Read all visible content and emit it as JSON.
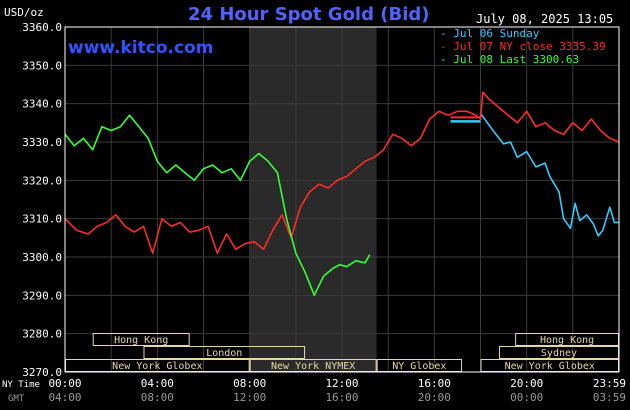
{
  "header": {
    "title": "24 Hour Spot Gold (Bid)",
    "unit": "USD/oz",
    "datetime": "July 08, 2025 13:05",
    "watermark": "www.kitco.com"
  },
  "legend": [
    {
      "label": "Jul 06 Sunday",
      "color": "#33ccff"
    },
    {
      "label": "Jul 07 NY close 3335.39",
      "color": "#ff2a2a"
    },
    {
      "label": "Jul 08 Last 3300.63",
      "color": "#33ff33"
    }
  ],
  "colors": {
    "background": "#000000",
    "grid": "#3a3a3a",
    "text": "#ffffff",
    "highlight": "#2a2a2a",
    "session_box": "#e6d7a8"
  },
  "axes": {
    "row1_label": "NY Time",
    "row2_label": "GMT",
    "x_ticks_ny": [
      "00:00",
      "04:00",
      "08:00",
      "12:00",
      "16:00",
      "20:00",
      "23:59"
    ],
    "x_ticks_gmt": [
      "04:00",
      "08:00",
      "12:00",
      "16:00",
      "20:00",
      "00:00",
      "03:59"
    ]
  },
  "sessions": [
    {
      "label": "Hong Kong",
      "start": 1.2,
      "end": 5.4,
      "row": 0
    },
    {
      "label": "London",
      "start": 3.4,
      "end": 10.4,
      "row": 1
    },
    {
      "label": "New York Globex",
      "start": 0.0,
      "end": 8.0,
      "row": 2
    },
    {
      "label": "New York NYMEX",
      "start": 8.0,
      "end": 13.5,
      "row": 2
    },
    {
      "label": "NY Globex",
      "start": 13.5,
      "end": 17.2,
      "row": 2
    },
    {
      "label": "Hong Kong",
      "start": 19.5,
      "end": 24.0,
      "row": 0
    },
    {
      "label": "Sydney",
      "start": 18.8,
      "end": 24.0,
      "row": 1
    },
    {
      "label": "New York Globex",
      "start": 18.0,
      "end": 24.0,
      "row": 2
    }
  ],
  "chart_data": {
    "type": "line",
    "title": "24 Hour Spot Gold (Bid)",
    "ylabel": "USD/oz",
    "xlabel": "NY Time",
    "xlim": [
      0,
      24
    ],
    "ylim": [
      3270,
      3360
    ],
    "y_ticks": [
      "3270.0",
      "3280.0",
      "3290.0",
      "3300.0",
      "3310.0",
      "3320.0",
      "3330.0",
      "3340.0",
      "3350.0",
      "3360.0"
    ],
    "highlight_range": [
      8.0,
      13.5
    ],
    "grid": true,
    "series": [
      {
        "name": "Jul 06 Sunday",
        "color": "#33ccff",
        "x": [
          18.0,
          18.6,
          19.0,
          19.3,
          19.6,
          20.0,
          20.4,
          20.8,
          21.0,
          21.4,
          21.6,
          21.9,
          22.1,
          22.3,
          22.6,
          22.9,
          23.1,
          23.3,
          23.6,
          23.8,
          23.99
        ],
        "y": [
          3337.5,
          3332.5,
          3329.5,
          3330.0,
          3326.0,
          3327.5,
          3323.5,
          3324.5,
          3321.0,
          3317.0,
          3310.0,
          3307.5,
          3314.0,
          3309.5,
          3311.0,
          3308.5,
          3305.5,
          3307.0,
          3313.0,
          3309.0,
          3309.0
        ]
      },
      {
        "name": "Jul 07 NY close 3335.39",
        "color": "#ff2a2a",
        "x": [
          0.0,
          0.5,
          1.0,
          1.4,
          1.8,
          2.2,
          2.6,
          3.0,
          3.4,
          3.8,
          4.2,
          4.6,
          5.0,
          5.4,
          5.8,
          6.2,
          6.6,
          7.0,
          7.4,
          7.8,
          8.2,
          8.6,
          9.0,
          9.4,
          9.8,
          10.2,
          10.6,
          11.0,
          11.4,
          11.8,
          12.2,
          12.6,
          13.0,
          13.4,
          13.8,
          14.2,
          14.6,
          15.0,
          15.4,
          15.8,
          16.2,
          16.6,
          17.0,
          17.4,
          17.8,
          18.0,
          18.1,
          18.4,
          18.8,
          19.2,
          19.6,
          20.0,
          20.4,
          20.8,
          21.2,
          21.6,
          22.0,
          22.4,
          22.8,
          23.2,
          23.6,
          23.99
        ],
        "y": [
          3310.0,
          3307.0,
          3306.0,
          3308.0,
          3309.0,
          3311.0,
          3308.0,
          3306.5,
          3308.0,
          3301.0,
          3310.0,
          3308.0,
          3309.0,
          3306.5,
          3307.0,
          3308.0,
          3301.0,
          3306.0,
          3302.0,
          3303.5,
          3304.0,
          3302.0,
          3307.0,
          3311.0,
          3305.0,
          3313.0,
          3317.0,
          3319.0,
          3318.0,
          3320.0,
          3321.0,
          3323.0,
          3325.0,
          3326.0,
          3328.0,
          3332.0,
          3331.0,
          3329.0,
          3331.0,
          3336.0,
          3338.0,
          3337.0,
          3338.0,
          3338.0,
          3337.0,
          3336.0,
          3343.0,
          3341.0,
          3339.0,
          3337.0,
          3335.0,
          3338.0,
          3334.0,
          3335.0,
          3333.0,
          3332.0,
          3335.0,
          3333.0,
          3336.0,
          3333.0,
          3331.0,
          3330.0
        ]
      },
      {
        "name": "Jul 08 Last 3300.63",
        "color": "#33ff33",
        "x": [
          0.0,
          0.4,
          0.8,
          1.2,
          1.6,
          2.0,
          2.4,
          2.8,
          3.2,
          3.6,
          4.0,
          4.4,
          4.8,
          5.2,
          5.6,
          6.0,
          6.4,
          6.8,
          7.2,
          7.6,
          8.0,
          8.4,
          8.8,
          9.2,
          9.6,
          10.0,
          10.4,
          10.8,
          11.2,
          11.6,
          11.9,
          12.2,
          12.6,
          13.0,
          13.2
        ],
        "y": [
          3332.0,
          3329.0,
          3331.0,
          3328.0,
          3334.0,
          3333.0,
          3334.0,
          3337.0,
          3334.0,
          3331.0,
          3325.0,
          3322.0,
          3324.0,
          3322.0,
          3320.0,
          3323.0,
          3324.0,
          3322.0,
          3323.0,
          3320.0,
          3325.0,
          3327.0,
          3325.0,
          3322.0,
          3310.0,
          3301.0,
          3296.0,
          3290.0,
          3295.0,
          3297.0,
          3298.0,
          3297.5,
          3299.0,
          3298.5,
          3300.6
        ]
      }
    ]
  }
}
